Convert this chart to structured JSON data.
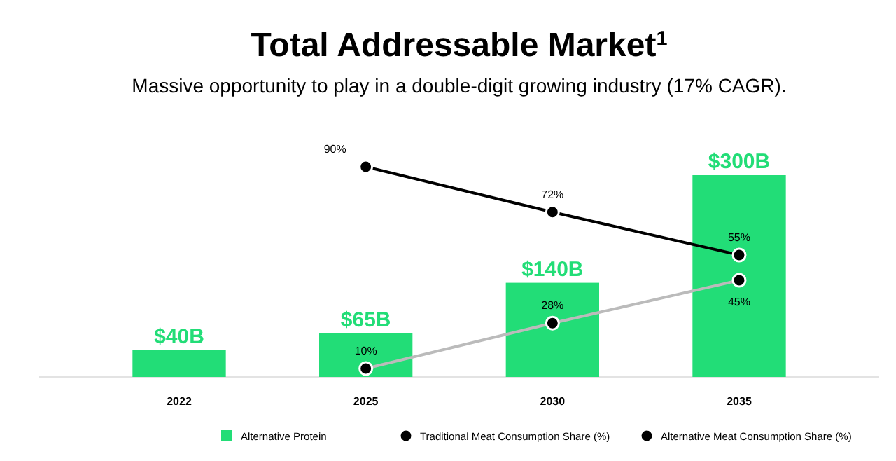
{
  "chart_data": {
    "type": "bar",
    "title": "Total Addressable Market$^{1}$",
    "subtitle": "Massive opportunity to play in a double-digit growing industry (17% CAGR).",
    "categories": [
      "2022",
      "2025",
      "2030",
      "2035"
    ],
    "tick_labels": "x",
    "legend": "bottom",
    "marker": "circle",
    "series": [
      {
        "name": "Alternative Protein",
        "color": "#22dd77",
        "values": [
          40,
          65,
          140,
          300
        ],
        "value_labels": [
          "$40B",
          "$65B",
          "$140B",
          "$300B"
        ]
      },
      {
        "name": "Traditional Meat Consumption Share (%)",
        "type": "line",
        "axis": "y2",
        "color": "#000000",
        "values": [
          null,
          90,
          72,
          55
        ],
        "value_labels": [
          null,
          "90%",
          "72%",
          "55%"
        ]
      },
      {
        "name": "Alternative Meat Consumption Share (%)",
        "type": "line",
        "axis": "y2",
        "color": "#bbbbbb",
        "values": [
          null,
          10,
          28,
          45
        ],
        "value_labels": [
          null,
          "10%",
          "28%",
          "45%"
        ]
      }
    ]
  }
}
